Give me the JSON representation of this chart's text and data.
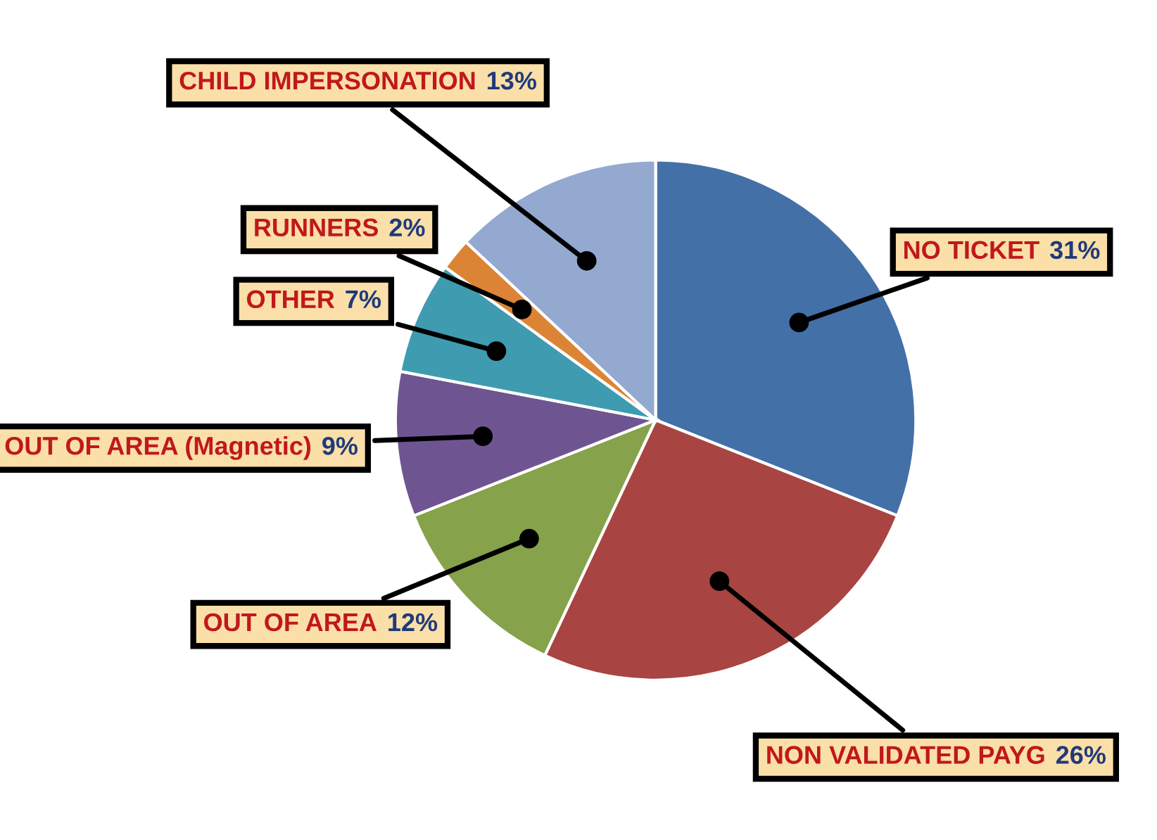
{
  "chart_data": {
    "type": "pie",
    "categories": [
      "NO TICKET",
      "NON VALIDATED PAYG",
      "OUT OF AREA",
      "OUT OF AREA (Magnetic)",
      "OTHER",
      "RUNNERS",
      "CHILD IMPERSONATION"
    ],
    "values": [
      31,
      26,
      12,
      9,
      7,
      2,
      13
    ],
    "value_labels": [
      "31%",
      "26%",
      "12%",
      "9%",
      "7%",
      "2%",
      "13%"
    ],
    "colors": [
      "#4470a8",
      "#a84442",
      "#86a24a",
      "#6e5592",
      "#3f9bb0",
      "#dc8436",
      "#93a9d0"
    ],
    "legend": false
  }
}
